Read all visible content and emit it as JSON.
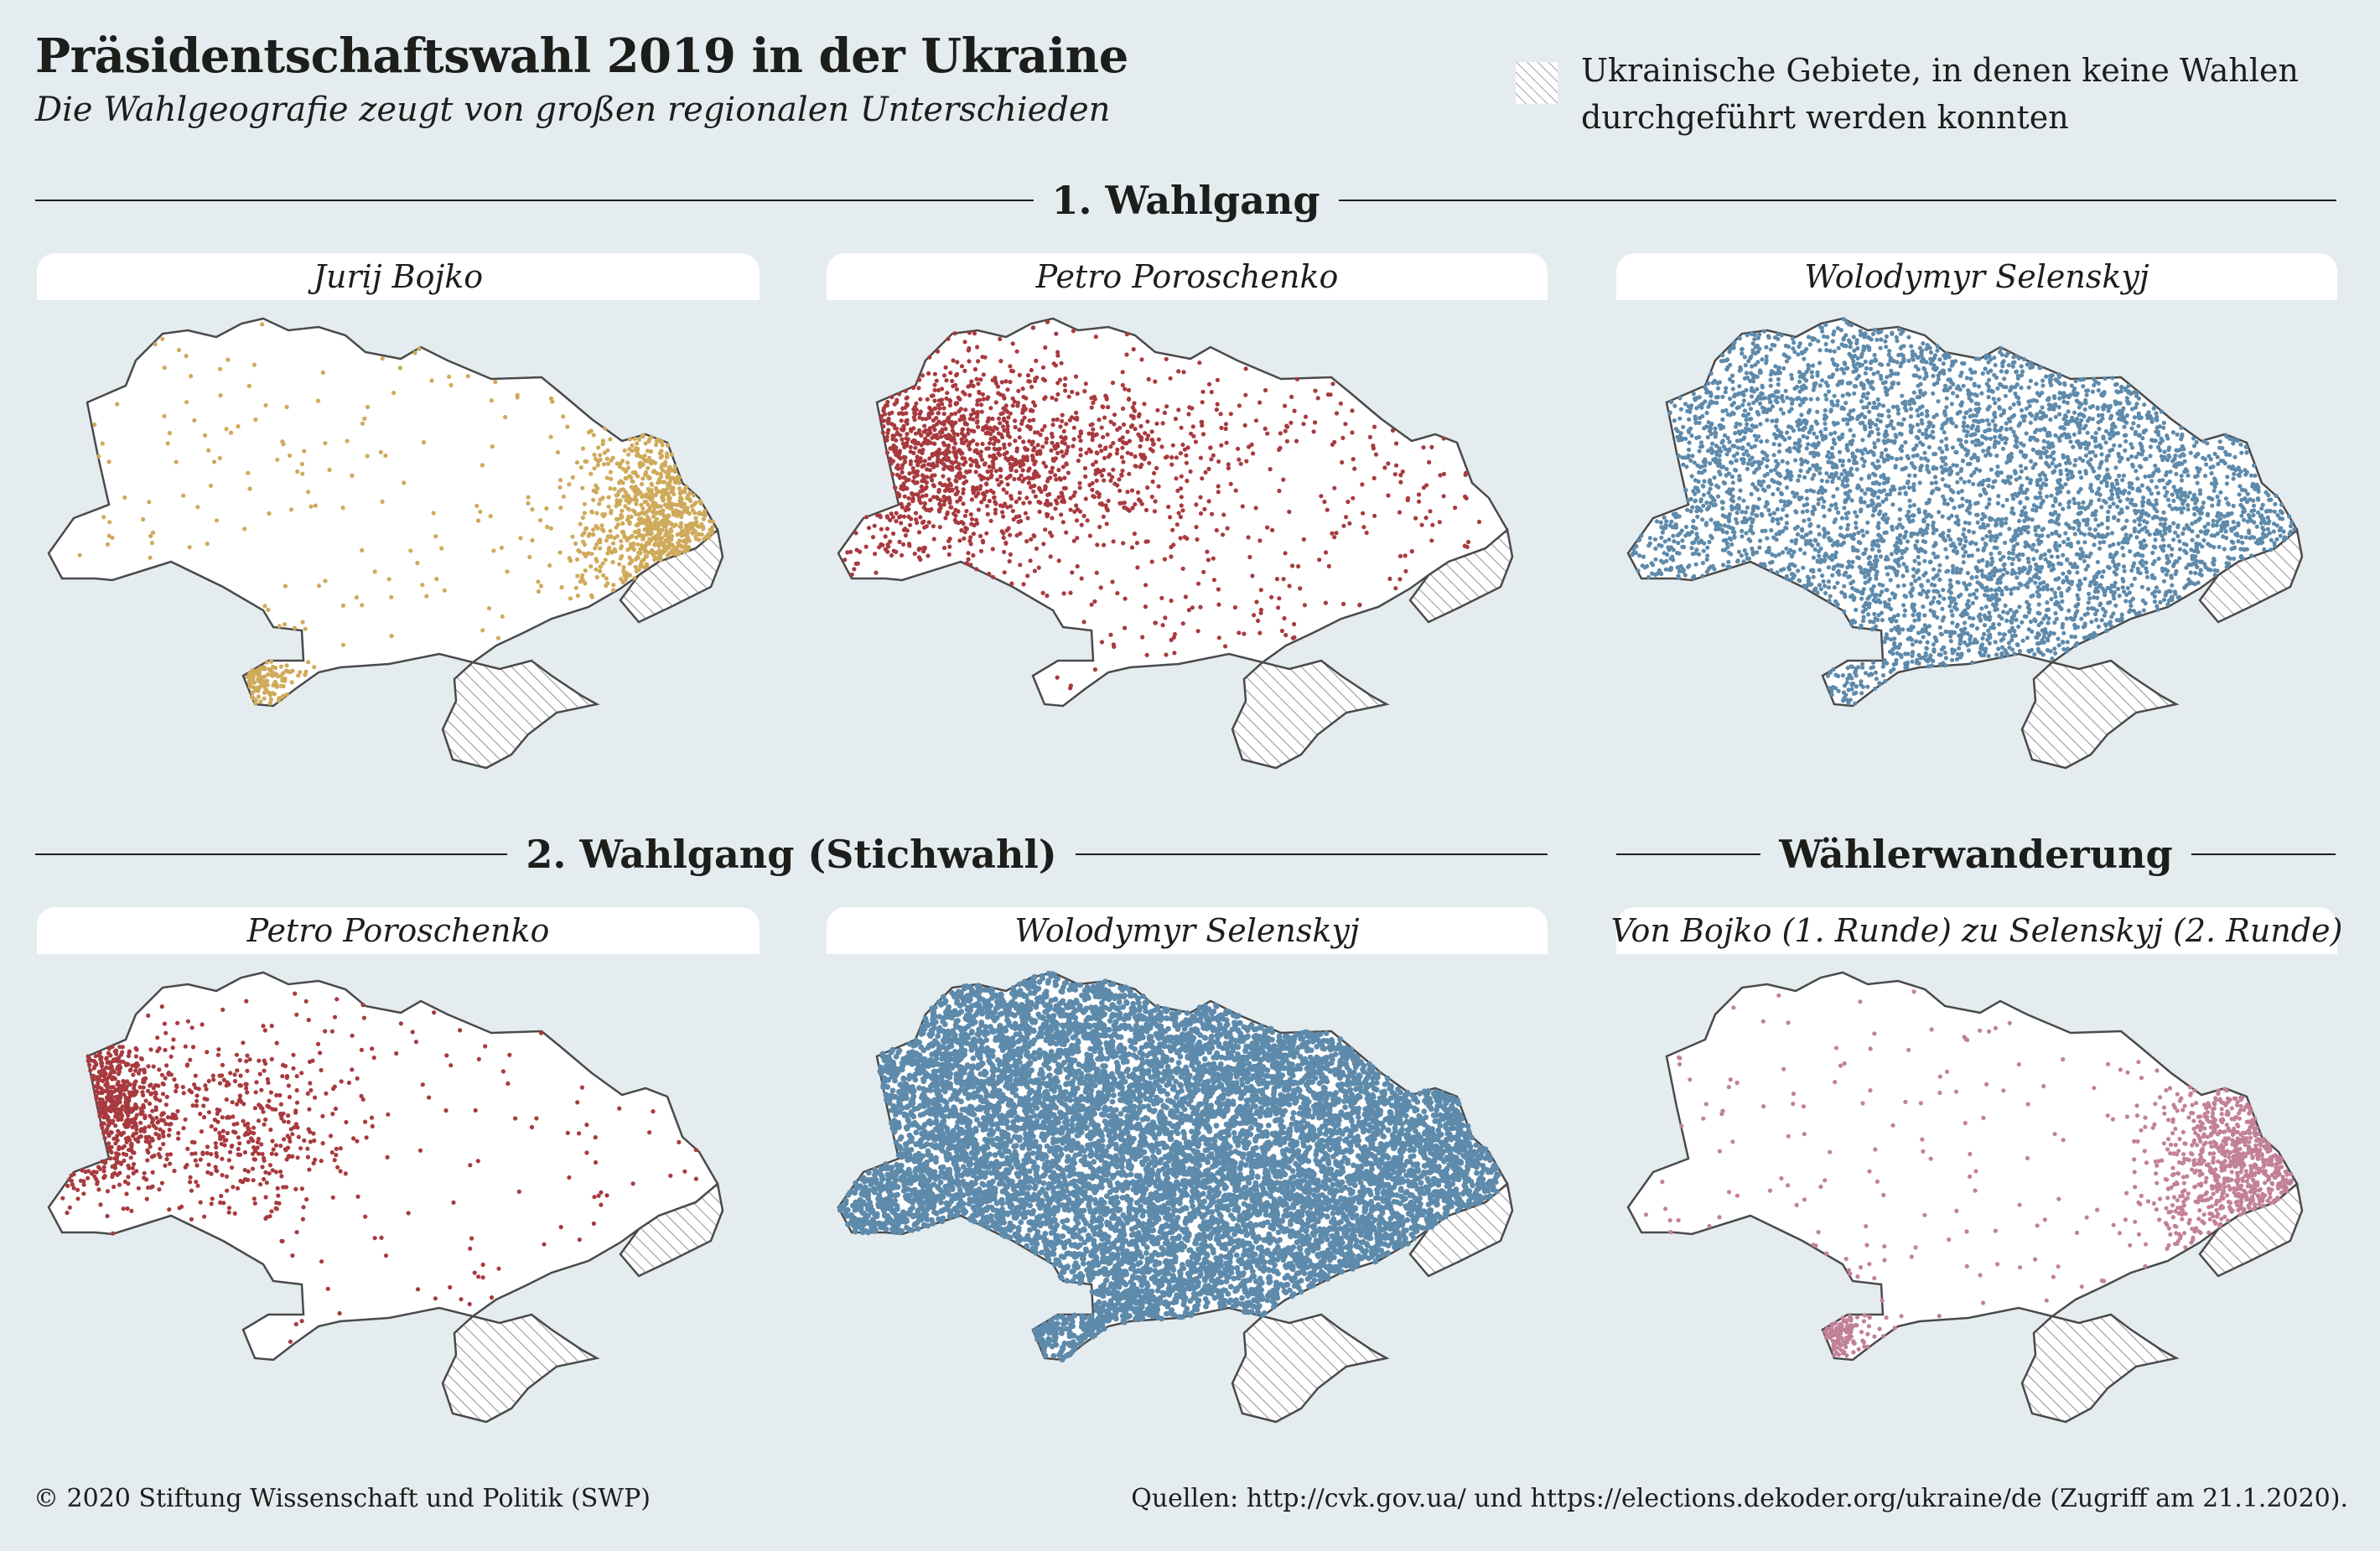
{
  "header": {
    "title": "Präsidentschaftswahl 2019 in der Ukraine",
    "subtitle": "Die Wahlgeografie zeugt von großen regionalen Unterschieden"
  },
  "legend": {
    "label_line1": "Ukrainische Gebiete, in denen keine Wahlen",
    "label_line2": "durchgeführt werden konnten",
    "icon": "hatched-square"
  },
  "sections": {
    "round1": "1. Wahlgang",
    "round2": "2. Wahlgang (Stichwahl)",
    "migration": "Wählerwanderung"
  },
  "panels": [
    {
      "id": "r1-bojko",
      "title": "Jurij Bojko",
      "color": "#cfaa5b",
      "density": "sparse",
      "focus": "east"
    },
    {
      "id": "r1-poroschenko",
      "title": "Petro Poroschenko",
      "color": "#a83a3f",
      "density": "medium",
      "focus": "west"
    },
    {
      "id": "r1-selenskyj",
      "title": "Wolodymyr Selenskyj",
      "color": "#5e8aab",
      "density": "dense",
      "focus": "center"
    },
    {
      "id": "r2-poroschenko",
      "title": "Petro Poroschenko",
      "color": "#a83a3f",
      "density": "sparse",
      "focus": "far-west"
    },
    {
      "id": "r2-selenskyj",
      "title": "Wolodymyr Selenskyj",
      "color": "#5e8aab",
      "density": "full",
      "focus": "all"
    },
    {
      "id": "migration",
      "title": "Von Bojko (1. Runde) zu Selenskyj (2. Runde)",
      "color": "#c28198",
      "density": "sparse",
      "focus": "east"
    }
  ],
  "colors": {
    "background": "#e4ecef",
    "map_fill": "#ffffff",
    "map_border": "#4a4a4a",
    "hatch": "#9a9a9a"
  },
  "footer": {
    "copyright": "© 2020 Stiftung Wissenschaft und Politik (SWP)",
    "sources": "Quellen: http://cvk.gov.ua/ und https://elections.dekoder.org/ukraine/de (Zugriff am 21.1.2020)."
  }
}
